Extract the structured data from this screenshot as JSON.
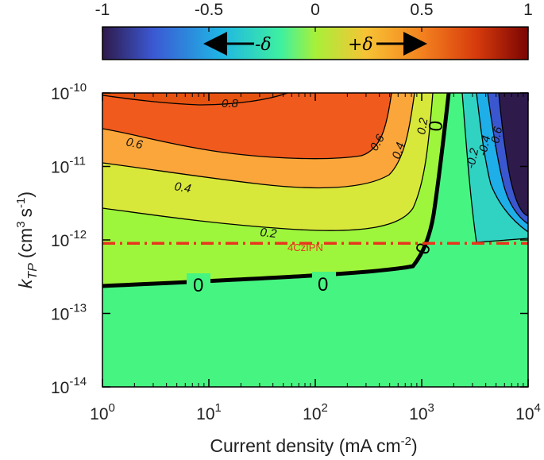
{
  "chart_data": {
    "type": "heatmap",
    "title": "",
    "xlabel": "Current density (mA cm",
    "xlabel_sup": "-2",
    "xlabel_close": ")",
    "ylabel_k": "k",
    "ylabel_sub": "TP",
    "ylabel_units": "(cm",
    "ylabel_sup1": "3",
    "ylabel_units2": "s",
    "ylabel_sup2": "-1",
    "ylabel_close": ")",
    "x_scale": "log",
    "y_scale": "log",
    "xlim": [
      1,
      10000
    ],
    "ylim": [
      1e-14,
      1e-10
    ],
    "x_ticks": [
      {
        "value": 1,
        "base": "10",
        "exp": "0"
      },
      {
        "value": 10,
        "base": "10",
        "exp": "1"
      },
      {
        "value": 100,
        "base": "10",
        "exp": "2"
      },
      {
        "value": 1000,
        "base": "10",
        "exp": "3"
      },
      {
        "value": 10000,
        "base": "10",
        "exp": "4"
      }
    ],
    "y_ticks": [
      {
        "value": 1e-10,
        "base": "10",
        "exp": "-10"
      },
      {
        "value": 1e-11,
        "base": "10",
        "exp": "-11"
      },
      {
        "value": 1e-12,
        "base": "10",
        "exp": "-12"
      },
      {
        "value": 1e-13,
        "base": "10",
        "exp": "-13"
      },
      {
        "value": 1e-14,
        "base": "10",
        "exp": "-14"
      }
    ],
    "colorbar": {
      "range": [
        -1,
        1
      ],
      "ticks": [
        "-1",
        "-0.5",
        "0",
        "0.5",
        "1"
      ],
      "arrow_negative": "-δ",
      "arrow_positive": "+δ",
      "colors": [
        "#2f1a4b",
        "#3b59d4",
        "#1fb6e4",
        "#3ff0a0",
        "#a7f03a",
        "#f7c335",
        "#f4821f",
        "#d63a0c",
        "#7a0403"
      ]
    },
    "contour_levels": [
      -0.6,
      -0.4,
      -0.2,
      0,
      0.2,
      0.4,
      0.6,
      0.8
    ],
    "contour_labels": [
      "0.8",
      "0.6",
      "0.4",
      "0.2",
      "0",
      "-0.2",
      "-0.4",
      "-0.6"
    ],
    "reference_line": {
      "label": "4CzIPN",
      "y": 9e-13,
      "color": "#e8351c"
    },
    "background_color": "#46f581",
    "fill_colors": {
      "neg06": "#2e1b4c",
      "neg04": "#3a57d0",
      "neg02": "#1eaee8",
      "neg00": "#30d3c2",
      "pos00": "#9ef63c",
      "pos02": "#d8e83a",
      "pos04": "#fba63a",
      "pos06": "#f05a1c"
    }
  }
}
